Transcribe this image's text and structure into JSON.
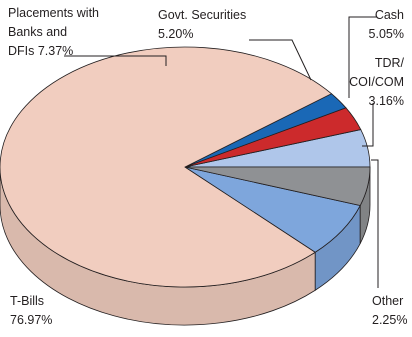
{
  "chart_data": {
    "type": "pie",
    "style": "3d",
    "slices": [
      {
        "label": "Cash",
        "value": 5.05,
        "color": "#afc6ea"
      },
      {
        "label": "TDR/ COI/COM",
        "value": 3.16,
        "color": "#cc2a2c"
      },
      {
        "label": "Other",
        "value": 2.25,
        "color": "#1a68b6"
      },
      {
        "label": "T-Bills",
        "value": 76.97,
        "color": "#f1cdbf"
      },
      {
        "label": "Placements with Banks and DFIs",
        "value": 7.37,
        "color": "#7ea6dc"
      },
      {
        "label": "Govt. Securities",
        "value": 5.2,
        "color": "#8f9194"
      }
    ]
  },
  "labels": {
    "placements": {
      "line1": "Placements with",
      "line2": "Banks and",
      "line3": "DFIs 7.37%"
    },
    "govt": {
      "line1": "Govt. Securities",
      "line2": "5.20%"
    },
    "cash": {
      "line1": "Cash",
      "line2": "5.05%"
    },
    "tdr": {
      "line1": "TDR/",
      "line2": "COI/COM",
      "line3": "3.16%"
    },
    "tbills": {
      "line1": "T-Bills",
      "line2": "76.97%"
    },
    "other": {
      "line1": "Other",
      "line2": "2.25%"
    }
  }
}
